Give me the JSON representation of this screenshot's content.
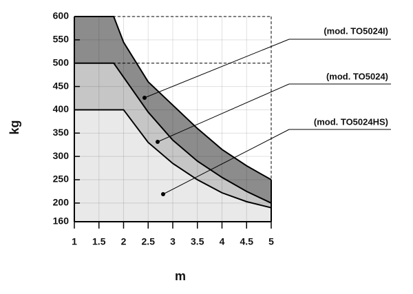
{
  "chart_data": {
    "type": "area",
    "xlabel": "m",
    "ylabel": "kg",
    "xlim": [
      1,
      5
    ],
    "xticks": [
      1,
      1.5,
      2,
      2.5,
      3,
      3.5,
      4,
      4.5,
      5
    ],
    "ylim": [
      160,
      600
    ],
    "yticks": [
      160,
      200,
      250,
      300,
      350,
      400,
      450,
      500,
      550,
      600
    ],
    "grid": true,
    "series": [
      {
        "name": "(mod. TO5024I)",
        "color": "#8c8c8c",
        "x": [
          1,
          1.8,
          2,
          2.5,
          3,
          3.5,
          4,
          4.5,
          5
        ],
        "values": [
          600,
          600,
          545,
          460,
          410,
          360,
          315,
          280,
          250
        ]
      },
      {
        "name": "(mod. TO5024)",
        "color": "#c6c6c6",
        "x": [
          1,
          1.8,
          2,
          2.5,
          3,
          3.5,
          4,
          4.5,
          5
        ],
        "values": [
          500,
          500,
          470,
          395,
          335,
          290,
          255,
          225,
          200
        ]
      },
      {
        "name": "(mod. TO5024HS)",
        "color": "#e9e9e9",
        "x": [
          1,
          2,
          2.5,
          3,
          3.5,
          4,
          4.5,
          5
        ],
        "values": [
          400,
          400,
          330,
          285,
          250,
          222,
          203,
          190
        ]
      }
    ]
  }
}
